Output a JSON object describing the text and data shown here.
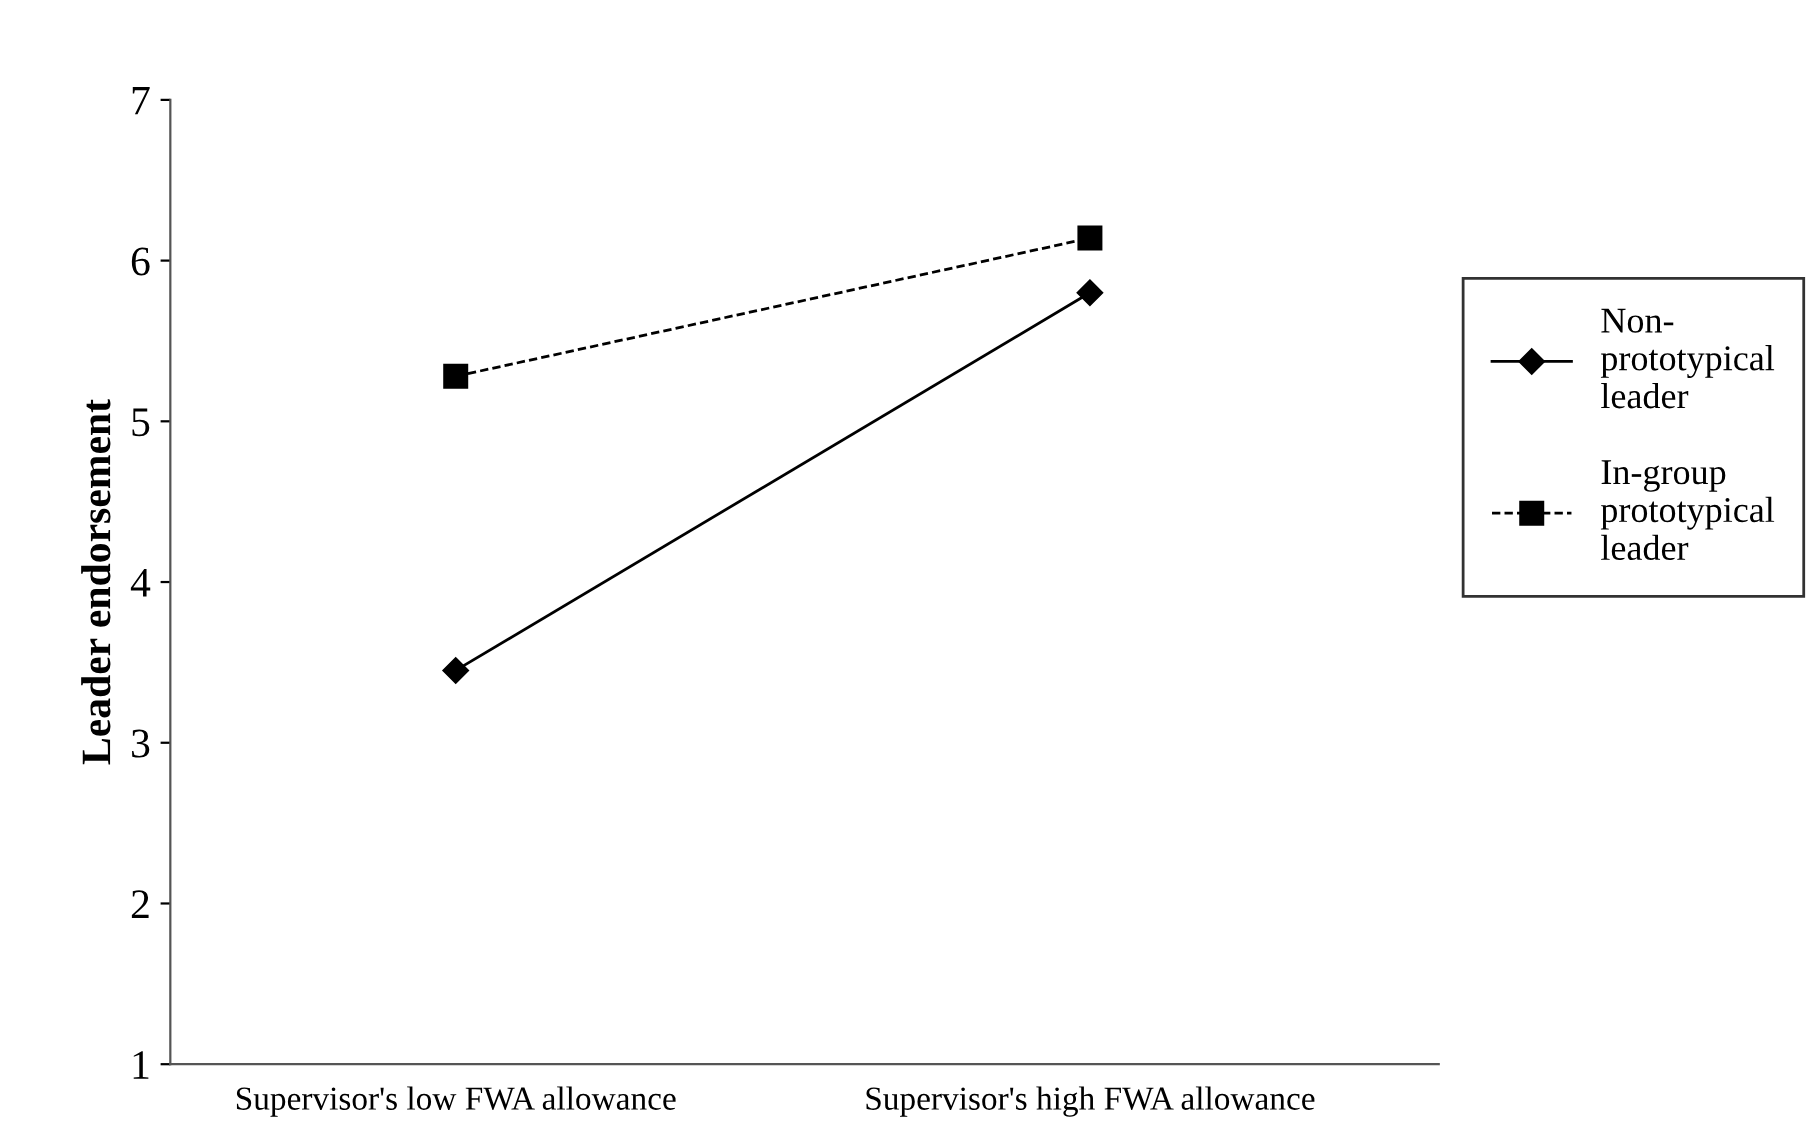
{
  "chart_data": {
    "type": "line",
    "ylabel": "Leader endorsement",
    "categories": [
      "Supervisor's low FWA allowance",
      "Supervisor's high FWA allowance"
    ],
    "series": [
      {
        "name": "Non-\nprototypical\nleader",
        "color": "#000000",
        "values": [
          3.45,
          5.8
        ],
        "marker": "diamond",
        "line_style": "solid"
      },
      {
        "name": "In-group\nprototypical\nleader",
        "color": "#000000",
        "values": [
          5.28,
          6.14
        ],
        "marker": "square",
        "line_style": "dashed"
      }
    ],
    "ylim": [
      1,
      7
    ],
    "yticks": [
      1,
      2,
      3,
      4,
      5,
      6,
      7
    ],
    "grid": false,
    "legend": "right"
  }
}
